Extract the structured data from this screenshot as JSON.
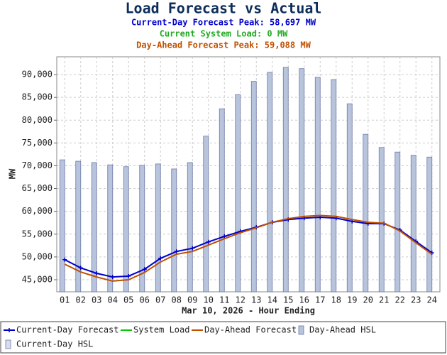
{
  "chart_data": {
    "type": "bar",
    "title": "Load Forecast vs Actual",
    "subtitles": [
      {
        "text": "Current-Day Forecast Peak:  58,697 MW",
        "color": "#0000cc"
      },
      {
        "text": "Current System Load:  0 MW",
        "color": "#22aa22"
      },
      {
        "text": "Day-Ahead Forecast Peak:  59,088 MW",
        "color": "#c05000"
      }
    ],
    "x_label": "Mar 10, 2026 - Hour Ending",
    "y_label": "MW",
    "categories": [
      "01",
      "02",
      "03",
      "04",
      "05",
      "06",
      "07",
      "08",
      "09",
      "10",
      "11",
      "12",
      "13",
      "14",
      "15",
      "16",
      "17",
      "18",
      "19",
      "20",
      "21",
      "22",
      "23",
      "24"
    ],
    "series": [
      {
        "name": "Current-Day Forecast",
        "style": "line",
        "color": "#0000cc",
        "values": [
          49400,
          47600,
          46400,
          45600,
          45800,
          47300,
          49700,
          51200,
          51900,
          53300,
          54500,
          55600,
          56500,
          57600,
          58200,
          58500,
          58700,
          58500,
          57800,
          57300,
          57300,
          55900,
          53400,
          50900
        ]
      },
      {
        "name": "System Load",
        "style": "line",
        "color": "#00cc00",
        "values": [
          null,
          null,
          null,
          null,
          null,
          null,
          null,
          null,
          null,
          null,
          null,
          null,
          null,
          null,
          null,
          null,
          null,
          null,
          null,
          null,
          null,
          null,
          null,
          null
        ]
      },
      {
        "name": "Day-Ahead Forecast",
        "style": "line",
        "color": "#c05000",
        "values": [
          48400,
          46700,
          45600,
          44700,
          45000,
          46600,
          48900,
          50600,
          51200,
          52600,
          54000,
          55300,
          56400,
          57600,
          58400,
          58900,
          59100,
          58900,
          58200,
          57600,
          57400,
          55700,
          53100,
          50600
        ]
      },
      {
        "name": "Day-Ahead HSL",
        "style": "bar",
        "color": "#b8c4dc",
        "values": [
          71300,
          71000,
          70700,
          70200,
          69800,
          70100,
          70400,
          69300,
          70700,
          76500,
          82500,
          85600,
          88500,
          90500,
          91600,
          91300,
          89400,
          88900,
          83600,
          76900,
          74000,
          73000,
          72300,
          71900
        ]
      },
      {
        "name": "Current-Day HSL",
        "style": "bar",
        "color": "#d8dcec",
        "values": [
          null,
          null,
          null,
          null,
          null,
          null,
          null,
          null,
          null,
          null,
          null,
          null,
          null,
          null,
          null,
          null,
          null,
          null,
          null,
          null,
          null,
          null,
          null,
          null
        ]
      }
    ],
    "ylim": [
      42350,
      93900
    ],
    "yticks": [
      {
        "value": 45000,
        "label": "45,000"
      },
      {
        "value": 50000,
        "label": "50,000"
      },
      {
        "value": 55000,
        "label": "55,000"
      },
      {
        "value": 60000,
        "label": "60,000"
      },
      {
        "value": 65000,
        "label": "65,000"
      },
      {
        "value": 70000,
        "label": "70,000"
      },
      {
        "value": 75000,
        "label": "75,000"
      },
      {
        "value": 80000,
        "label": "80,000"
      },
      {
        "value": 85000,
        "label": "85,000"
      },
      {
        "value": 90000,
        "label": "90,000"
      }
    ],
    "grid": true
  }
}
